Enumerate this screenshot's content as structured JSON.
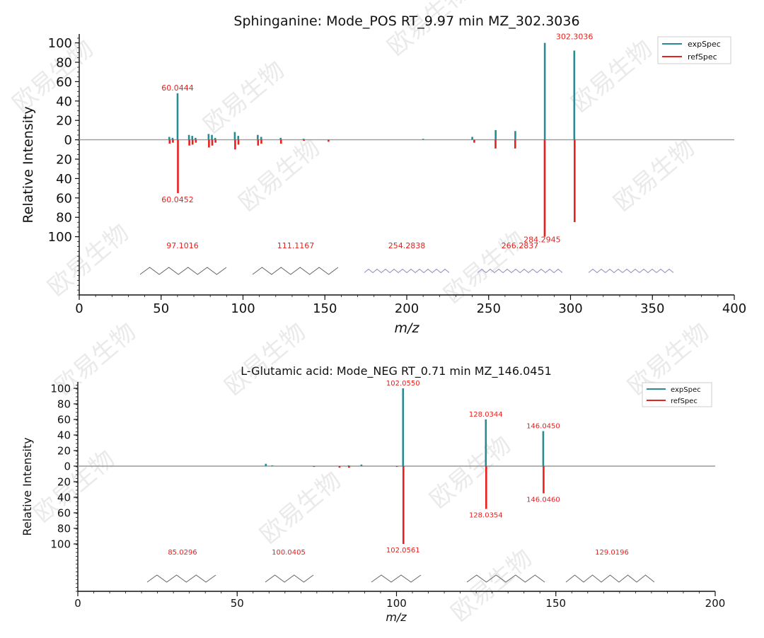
{
  "colors": {
    "exp": "#2a8b93",
    "ref": "#e8201e",
    "baseline": "#9a9a9a",
    "peak_label": "#e8201e"
  },
  "watermark": "欧易生物",
  "chart_data": [
    {
      "type": "bar",
      "subtype": "mirror-spectrum",
      "title": "Sphinganine: Mode_POS  RT_9.97 min  MZ_302.3036",
      "xlabel": "m/z",
      "ylabel": "Relative Intensity",
      "xlim": [
        0,
        400
      ],
      "x_ticks": [
        "0",
        "50",
        "100",
        "150",
        "200",
        "250",
        "300",
        "350",
        "400"
      ],
      "y_ticks_up": [
        "100",
        "80",
        "60",
        "40",
        "20",
        "0"
      ],
      "y_ticks_down": [
        "20",
        "40",
        "60",
        "80",
        "100"
      ],
      "legend": [
        "expSpec",
        "refSpec"
      ],
      "legend_position": "top-right",
      "series": [
        {
          "name": "expSpec",
          "peaks": [
            [
              55,
              3
            ],
            [
              57,
              2
            ],
            [
              60.0444,
              48
            ],
            [
              67,
              5
            ],
            [
              69,
              4
            ],
            [
              71,
              2
            ],
            [
              79,
              6
            ],
            [
              81,
              5
            ],
            [
              83,
              2
            ],
            [
              95,
              8
            ],
            [
              97.1016,
              4
            ],
            [
              109,
              5
            ],
            [
              111.1167,
              3
            ],
            [
              123,
              2
            ],
            [
              137,
              1
            ],
            [
              210,
              1
            ],
            [
              240,
              3
            ],
            [
              254.2838,
              10
            ],
            [
              266.2837,
              9
            ],
            [
              284.2945,
              100
            ],
            [
              302.3036,
              92
            ]
          ]
        },
        {
          "name": "refSpec",
          "peaks": [
            [
              55,
              4
            ],
            [
              57,
              3
            ],
            [
              60.0452,
              55
            ],
            [
              67,
              6
            ],
            [
              69,
              5
            ],
            [
              71,
              3
            ],
            [
              79,
              8
            ],
            [
              81,
              6
            ],
            [
              83,
              3
            ],
            [
              95,
              10
            ],
            [
              97,
              5
            ],
            [
              109,
              6
            ],
            [
              111,
              4
            ],
            [
              123,
              4
            ],
            [
              137,
              1
            ],
            [
              152,
              2
            ],
            [
              241,
              3
            ],
            [
              254,
              9
            ],
            [
              266,
              9
            ],
            [
              284,
              100
            ],
            [
              302.3,
              85
            ]
          ]
        }
      ],
      "peak_labels": [
        {
          "text": "60.0444",
          "mz": 60.0444,
          "side": "up",
          "intensity": 48
        },
        {
          "text": "60.0452",
          "mz": 60.0452,
          "side": "down",
          "intensity": 55
        },
        {
          "text": "302.3036",
          "mz": 302.3036,
          "side": "up",
          "intensity": 92
        },
        {
          "text": "284.2945",
          "mz": 284.2945,
          "side": "down",
          "intensity": 100
        }
      ],
      "fragment_labels": [
        "97.1016",
        "111.1167",
        "254.2838",
        "266.2837"
      ]
    },
    {
      "type": "bar",
      "subtype": "mirror-spectrum",
      "title": "L-Glutamic acid: Mode_NEG  RT_0.71 min  MZ_146.0451",
      "xlabel": "m/z",
      "ylabel": "Relative Intensity",
      "xlim": [
        0,
        200
      ],
      "x_ticks": [
        "0",
        "50",
        "100",
        "150",
        "200"
      ],
      "y_ticks_up": [
        "100",
        "80",
        "60",
        "40",
        "20",
        "0"
      ],
      "y_ticks_down": [
        "20",
        "40",
        "60",
        "80",
        "100"
      ],
      "legend": [
        "expSpec",
        "refSpec"
      ],
      "legend_position": "top-right",
      "series": [
        {
          "name": "expSpec",
          "peaks": [
            [
              59,
              3
            ],
            [
              61,
              1
            ],
            [
              85,
              1
            ],
            [
              89,
              2
            ],
            [
              102.055,
              100
            ],
            [
              128.0344,
              60
            ],
            [
              146.045,
              45
            ]
          ]
        },
        {
          "name": "refSpec",
          "peaks": [
            [
              74,
              1
            ],
            [
              82,
              2
            ],
            [
              85,
              2
            ],
            [
              100,
              1
            ],
            [
              102.0561,
              100
            ],
            [
              128.0354,
              55
            ],
            [
              146.046,
              35
            ]
          ]
        }
      ],
      "peak_labels": [
        {
          "text": "102.0550",
          "mz": 102.055,
          "side": "up",
          "intensity": 100
        },
        {
          "text": "128.0344",
          "mz": 128.0344,
          "side": "up",
          "intensity": 60
        },
        {
          "text": "146.0450",
          "mz": 146.045,
          "side": "up",
          "intensity": 45
        },
        {
          "text": "128.0354",
          "mz": 128.0354,
          "side": "down",
          "intensity": 55
        },
        {
          "text": "146.0460",
          "mz": 146.046,
          "side": "down",
          "intensity": 35
        },
        {
          "text": "102.0561",
          "mz": 102.0561,
          "side": "down",
          "intensity": 100
        }
      ],
      "fragment_labels": [
        "85.0296",
        "100.0405",
        "129.0196"
      ]
    }
  ]
}
